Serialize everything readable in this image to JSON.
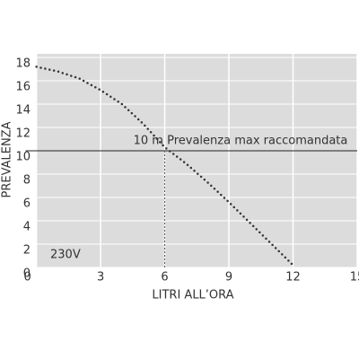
{
  "chart_data": {
    "type": "line",
    "xlabel": "LITRI ALL’ORA",
    "ylabel": "PREVALENZA",
    "x": [
      0,
      1,
      2,
      3,
      4,
      5,
      6,
      7,
      8,
      9,
      10,
      11,
      12
    ],
    "series": [
      {
        "color": "#333333",
        "values": [
          17.2,
          16.8,
          16.2,
          15.2,
          14.0,
          12.3,
          10.3,
          8.9,
          7.3,
          5.6,
          3.8,
          2.0,
          0.2
        ]
      }
    ],
    "xlim": [
      0,
      15
    ],
    "ylim": [
      0,
      18
    ],
    "xticks": [
      0,
      3,
      6,
      9,
      12,
      15
    ],
    "yticks": [
      0,
      2,
      4,
      6,
      8,
      10,
      12,
      14,
      16,
      18
    ],
    "grid": true,
    "reference_line": {
      "value": 10,
      "label": "10 m Prevalenza max raccomandata"
    },
    "marker_line": {
      "x": 6,
      "y": 10
    },
    "note": "230V"
  }
}
